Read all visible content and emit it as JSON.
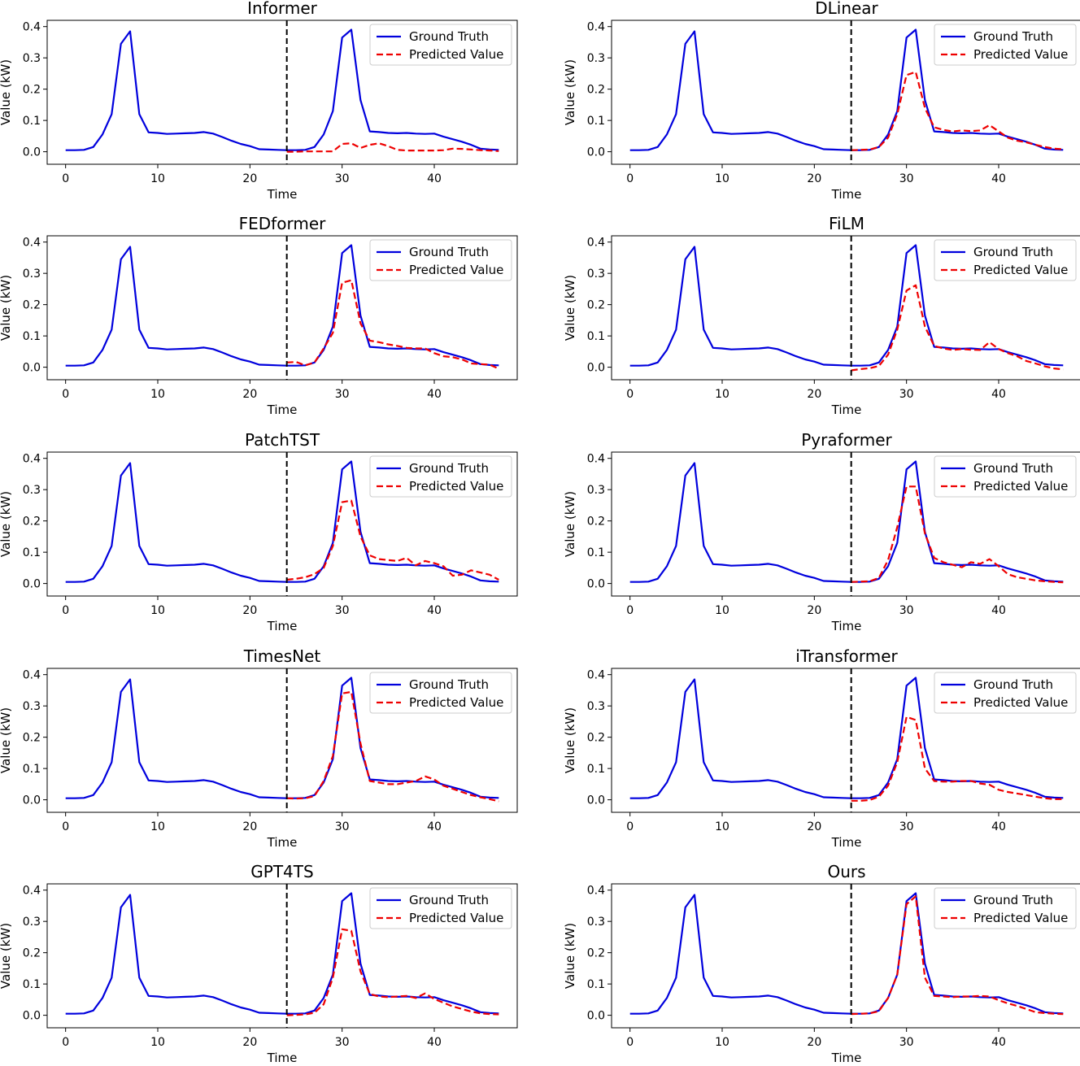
{
  "chart_data": {
    "type": "line",
    "layout": "5x2 grid of panels",
    "shared": {
      "xlabel": "Time",
      "ylabel": "Value (kW)",
      "x": [
        0,
        1,
        2,
        3,
        4,
        5,
        6,
        7,
        8,
        9,
        10,
        11,
        12,
        13,
        14,
        15,
        16,
        17,
        18,
        19,
        20,
        21,
        22,
        23,
        24,
        25,
        26,
        27,
        28,
        29,
        30,
        31,
        32,
        33,
        34,
        35,
        36,
        37,
        38,
        39,
        40,
        41,
        42,
        43,
        44,
        45,
        46,
        47
      ],
      "xlim": [
        -2,
        49
      ],
      "ylim": [
        -0.04,
        0.42
      ],
      "xticks": [
        0,
        10,
        20,
        30,
        40
      ],
      "yticks": [
        0.0,
        0.1,
        0.2,
        0.3,
        0.4
      ],
      "ytick_labels": [
        "0.0",
        "0.1",
        "0.2",
        "0.3",
        "0.4"
      ],
      "split_line_x": 24,
      "legend_position": "upper right",
      "legend": [
        "Ground Truth",
        "Predicted Value"
      ],
      "colors": {
        "ground_truth": "#0000dd",
        "predicted": "#ee0000",
        "split": "#000000"
      },
      "ground_truth": [
        0.005,
        0.005,
        0.006,
        0.015,
        0.055,
        0.12,
        0.345,
        0.385,
        0.12,
        0.062,
        0.06,
        0.057,
        0.058,
        0.059,
        0.06,
        0.063,
        0.058,
        0.047,
        0.035,
        0.025,
        0.018,
        0.008,
        0.007,
        0.006,
        0.005,
        0.005,
        0.006,
        0.015,
        0.055,
        0.13,
        0.365,
        0.39,
        0.165,
        0.065,
        0.063,
        0.06,
        0.059,
        0.06,
        0.058,
        0.057,
        0.058,
        0.048,
        0.04,
        0.032,
        0.022,
        0.01,
        0.007,
        0.006
      ]
    },
    "panels": [
      {
        "title": "Informer",
        "predicted": [
          0.0,
          0.0,
          0.001,
          0.001,
          0.001,
          0.001,
          0.025,
          0.027,
          0.012,
          0.022,
          0.027,
          0.018,
          0.006,
          0.004,
          0.004,
          0.004,
          0.004,
          0.005,
          0.01,
          0.009,
          0.007,
          0.005,
          0.004,
          0.002
        ]
      },
      {
        "title": "DLinear",
        "predicted": [
          0.005,
          0.006,
          0.007,
          0.015,
          0.045,
          0.12,
          0.245,
          0.255,
          0.14,
          0.078,
          0.07,
          0.065,
          0.068,
          0.066,
          0.068,
          0.085,
          0.065,
          0.045,
          0.035,
          0.03,
          0.022,
          0.015,
          0.01,
          0.008
        ]
      },
      {
        "title": "FEDformer",
        "predicted": [
          0.015,
          0.017,
          0.006,
          0.015,
          0.06,
          0.11,
          0.27,
          0.278,
          0.14,
          0.085,
          0.08,
          0.073,
          0.068,
          0.062,
          0.06,
          0.06,
          0.045,
          0.035,
          0.032,
          0.025,
          0.012,
          0.01,
          0.008,
          -0.005
        ]
      },
      {
        "title": "FiLM",
        "predicted": [
          -0.01,
          -0.006,
          -0.003,
          0.004,
          0.04,
          0.12,
          0.245,
          0.262,
          0.13,
          0.068,
          0.06,
          0.055,
          0.058,
          0.056,
          0.055,
          0.08,
          0.058,
          0.045,
          0.035,
          0.02,
          0.012,
          0.003,
          -0.004,
          -0.007
        ]
      },
      {
        "title": "PatchTST",
        "predicted": [
          0.012,
          0.015,
          0.02,
          0.03,
          0.05,
          0.12,
          0.26,
          0.265,
          0.15,
          0.09,
          0.078,
          0.075,
          0.072,
          0.082,
          0.058,
          0.072,
          0.065,
          0.055,
          0.025,
          0.028,
          0.042,
          0.035,
          0.028,
          0.012
        ]
      },
      {
        "title": "Pyraformer",
        "predicted": [
          0.005,
          0.006,
          0.007,
          0.018,
          0.075,
          0.18,
          0.31,
          0.31,
          0.16,
          0.082,
          0.068,
          0.06,
          0.052,
          0.068,
          0.063,
          0.078,
          0.055,
          0.03,
          0.02,
          0.015,
          0.01,
          0.007,
          0.005,
          0.004
        ]
      },
      {
        "title": "TimesNet",
        "predicted": [
          0.005,
          0.004,
          0.005,
          0.012,
          0.06,
          0.14,
          0.34,
          0.345,
          0.18,
          0.06,
          0.055,
          0.05,
          0.05,
          0.055,
          0.06,
          0.075,
          0.065,
          0.045,
          0.035,
          0.025,
          0.015,
          0.008,
          0.002,
          -0.005
        ]
      },
      {
        "title": "iTransformer",
        "predicted": [
          -0.003,
          -0.003,
          -0.001,
          0.01,
          0.045,
          0.12,
          0.265,
          0.255,
          0.1,
          0.06,
          0.058,
          0.058,
          0.06,
          0.06,
          0.052,
          0.048,
          0.032,
          0.025,
          0.02,
          0.015,
          0.01,
          0.005,
          0.002,
          0.002
        ]
      },
      {
        "title": "GPT4TS",
        "predicted": [
          0.0,
          0.001,
          0.003,
          0.008,
          0.035,
          0.12,
          0.275,
          0.27,
          0.14,
          0.068,
          0.06,
          0.058,
          0.06,
          0.062,
          0.055,
          0.07,
          0.052,
          0.04,
          0.028,
          0.02,
          0.012,
          0.006,
          0.004,
          0.003
        ]
      },
      {
        "title": "Ours",
        "predicted": [
          0.004,
          0.005,
          0.006,
          0.013,
          0.055,
          0.13,
          0.355,
          0.38,
          0.12,
          0.062,
          0.06,
          0.058,
          0.06,
          0.06,
          0.062,
          0.06,
          0.048,
          0.038,
          0.03,
          0.02,
          0.01,
          0.007,
          0.005,
          0.004
        ]
      }
    ]
  }
}
